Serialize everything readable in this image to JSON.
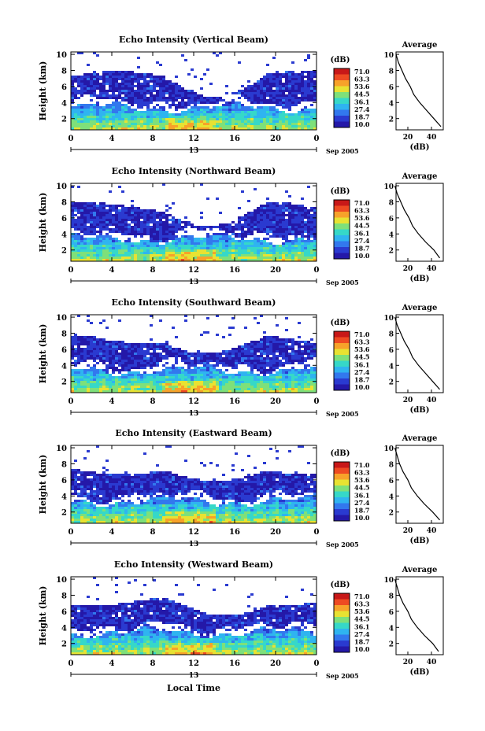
{
  "date_label": "Sep 2005",
  "footer_xlabel": "Local Time",
  "colors": {
    "colormap": [
      "#2418a8",
      "#2a3ad0",
      "#3278ee",
      "#2fb4f0",
      "#36d8c8",
      "#7ee07a",
      "#e8e232",
      "#f7a22a",
      "#ee4a22",
      "#c81818"
    ]
  },
  "chart_data": [
    {
      "type": "heatmap",
      "title": "Echo Intensity (Vertical Beam)",
      "ylabel": "Height (km)",
      "x_ticks": [
        "0",
        "4",
        "8",
        "12",
        "16",
        "20",
        "0"
      ],
      "xlim": [
        0,
        24
      ],
      "ylim": [
        0.6,
        10.3
      ],
      "y_ticks": [
        "2",
        "4",
        "6",
        "8",
        "10"
      ],
      "date_marker": "13",
      "colorbar": {
        "label": "(dB)",
        "ticks": [
          "71.0",
          "63.3",
          "53.6",
          "44.5",
          "36.1",
          "27.4",
          "18.7",
          "10.0"
        ]
      },
      "average_profile": {
        "title": "Average",
        "xlabel": "(dB)",
        "x_ticks": [
          "20",
          "40"
        ],
        "y_ticks": [
          "2",
          "4",
          "6",
          "8",
          "10"
        ],
        "height_km": [
          1,
          2,
          3,
          4,
          5,
          6,
          7,
          8,
          9,
          10
        ],
        "db": [
          48,
          42,
          36,
          30,
          25,
          22,
          18,
          15,
          12,
          10
        ]
      }
    },
    {
      "type": "heatmap",
      "title": "Echo Intensity (Northward Beam)",
      "ylabel": "Height (km)",
      "x_ticks": [
        "0",
        "4",
        "8",
        "12",
        "16",
        "20",
        "0"
      ],
      "xlim": [
        0,
        24
      ],
      "ylim": [
        0.6,
        10.3
      ],
      "y_ticks": [
        "2",
        "4",
        "6",
        "8",
        "10"
      ],
      "date_marker": "13",
      "colorbar": {
        "label": "(dB)",
        "ticks": [
          "71.0",
          "63.3",
          "53.6",
          "44.5",
          "36.1",
          "27.4",
          "18.7",
          "10.0"
        ]
      },
      "average_profile": {
        "title": "Average",
        "xlabel": "(dB)",
        "x_ticks": [
          "20",
          "40"
        ],
        "y_ticks": [
          "2",
          "4",
          "6",
          "8",
          "10"
        ],
        "height_km": [
          1,
          2,
          3,
          4,
          5,
          6,
          7,
          8,
          9,
          10
        ],
        "db": [
          47,
          42,
          35,
          29,
          24,
          21,
          17,
          14,
          11,
          9
        ]
      }
    },
    {
      "type": "heatmap",
      "title": "Echo Intensity (Southward Beam)",
      "ylabel": "Height (km)",
      "x_ticks": [
        "0",
        "4",
        "8",
        "12",
        "16",
        "20",
        "0"
      ],
      "xlim": [
        0,
        24
      ],
      "ylim": [
        0.6,
        10.3
      ],
      "y_ticks": [
        "2",
        "4",
        "6",
        "8",
        "10"
      ],
      "date_marker": "13",
      "colorbar": {
        "label": "(dB)",
        "ticks": [
          "71.0",
          "63.3",
          "53.6",
          "44.5",
          "36.1",
          "27.4",
          "18.7",
          "10.0"
        ]
      },
      "average_profile": {
        "title": "Average",
        "xlabel": "(dB)",
        "x_ticks": [
          "20",
          "40"
        ],
        "y_ticks": [
          "2",
          "4",
          "6",
          "8",
          "10"
        ],
        "height_km": [
          1,
          2,
          3,
          4,
          5,
          6,
          7,
          8,
          9,
          10
        ],
        "db": [
          47,
          41,
          35,
          29,
          24,
          21,
          17,
          14,
          11,
          9
        ]
      }
    },
    {
      "type": "heatmap",
      "title": "Echo Intensity (Eastward Beam)",
      "ylabel": "Height (km)",
      "x_ticks": [
        "0",
        "4",
        "8",
        "12",
        "16",
        "20",
        "0"
      ],
      "xlim": [
        0,
        24
      ],
      "ylim": [
        0.6,
        10.3
      ],
      "y_ticks": [
        "2",
        "4",
        "6",
        "8",
        "10"
      ],
      "date_marker": "13",
      "colorbar": {
        "label": "(dB)",
        "ticks": [
          "71.0",
          "63.3",
          "53.6",
          "44.5",
          "36.1",
          "27.4",
          "18.7",
          "10.0"
        ]
      },
      "average_profile": {
        "title": "Average",
        "xlabel": "(dB)",
        "x_ticks": [
          "20",
          "40"
        ],
        "y_ticks": [
          "2",
          "4",
          "6",
          "8",
          "10"
        ],
        "height_km": [
          1,
          2,
          3,
          4,
          5,
          6,
          7,
          8,
          9,
          10
        ],
        "db": [
          47,
          41,
          34,
          28,
          23,
          20,
          16,
          13,
          11,
          9
        ]
      }
    },
    {
      "type": "heatmap",
      "title": "Echo Intensity (Westward Beam)",
      "ylabel": "Height (km)",
      "x_ticks": [
        "0",
        "4",
        "8",
        "12",
        "16",
        "20",
        "0"
      ],
      "xlim": [
        0,
        24
      ],
      "ylim": [
        0.6,
        10.3
      ],
      "y_ticks": [
        "2",
        "4",
        "6",
        "8",
        "10"
      ],
      "date_marker": "13",
      "colorbar": {
        "label": "(dB)",
        "ticks": [
          "71.0",
          "63.3",
          "53.6",
          "44.5",
          "36.1",
          "27.4",
          "18.7",
          "10.0"
        ]
      },
      "average_profile": {
        "title": "Average",
        "xlabel": "(dB)",
        "x_ticks": [
          "20",
          "40"
        ],
        "y_ticks": [
          "2",
          "4",
          "6",
          "8",
          "10"
        ],
        "height_km": [
          1,
          2,
          3,
          4,
          5,
          6,
          7,
          8,
          9,
          10
        ],
        "db": [
          46,
          41,
          34,
          28,
          23,
          20,
          16,
          13,
          11,
          9
        ]
      }
    }
  ]
}
